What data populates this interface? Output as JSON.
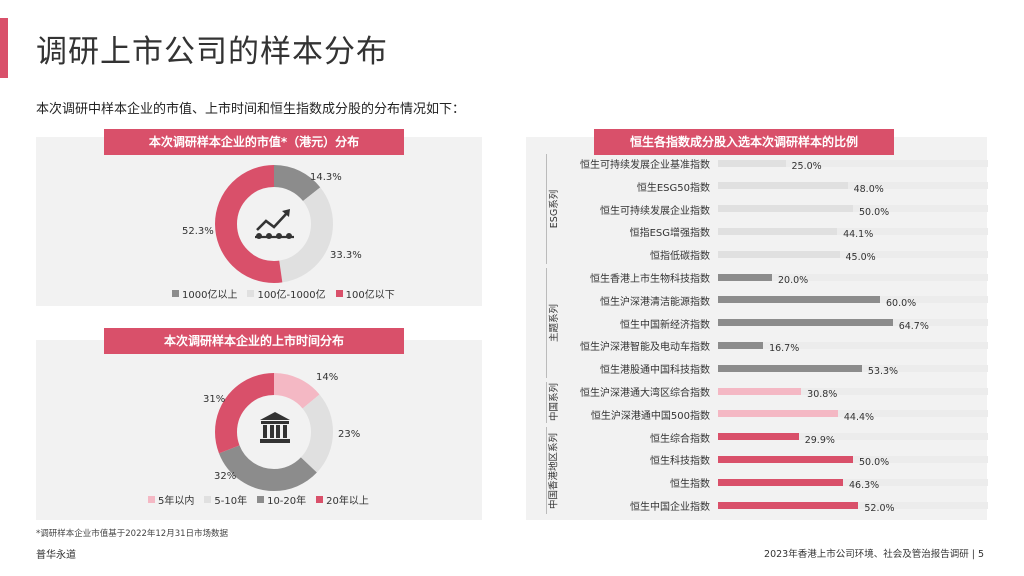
{
  "title": "调研上市公司的样本分布",
  "subtitle": "本次调研中样本企业的市值、上市时间和恒生指数成分股的分布情况如下：",
  "colors": {
    "accent": "#d9506a",
    "dark_gray": "#8c8c8c",
    "light_gray": "#e0e0e0",
    "light_pink": "#f4b8c4"
  },
  "panel1": {
    "heading": "本次调研样本企业的市值*（港元）分布",
    "icon": "chart-trend-icon",
    "legend": [
      "1000亿以上",
      "100亿-1000亿",
      "100亿以下"
    ]
  },
  "panel2": {
    "heading": "本次调研样本企业的上市时间分布",
    "icon": "bank-building-icon",
    "legend": [
      "5年以内",
      "5-10年",
      "10-20年",
      "20年以上"
    ]
  },
  "panel3": {
    "heading": "恒生各指数成分股入选本次调研样本的比例"
  },
  "chart_data": [
    {
      "type": "pie",
      "title": "本次调研样本企业的市值*（港元）分布",
      "categories": [
        "1000亿以上",
        "100亿-1000亿",
        "100亿以下"
      ],
      "values": [
        14.3,
        33.3,
        52.3
      ],
      "labels": [
        "14.3%",
        "33.3%",
        "52.3%"
      ],
      "colors": [
        "#8c8c8c",
        "#e0e0e0",
        "#d9506a"
      ]
    },
    {
      "type": "pie",
      "title": "本次调研样本企业的上市时间分布",
      "categories": [
        "5年以内",
        "5-10年",
        "10-20年",
        "20年以上"
      ],
      "values": [
        14,
        23,
        32,
        31
      ],
      "labels": [
        "14%",
        "23%",
        "32%",
        "31%"
      ],
      "colors": [
        "#f4b8c4",
        "#e0e0e0",
        "#8c8c8c",
        "#d9506a"
      ]
    },
    {
      "type": "bar",
      "orientation": "horizontal",
      "title": "恒生各指数成分股入选本次调研样本的比例",
      "xlim": [
        0,
        100
      ],
      "groups": [
        {
          "name": "ESG系列",
          "color": "#e0e0e0",
          "rows": [
            {
              "label": "恒生可持续发展企业基准指数",
              "value": 25.0,
              "text": "25.0%"
            },
            {
              "label": "恒生ESG50指数",
              "value": 48.0,
              "text": "48.0%"
            },
            {
              "label": "恒生可持续发展企业指数",
              "value": 50.0,
              "text": "50.0%"
            },
            {
              "label": "恒指ESG增强指数",
              "value": 44.1,
              "text": "44.1%"
            },
            {
              "label": "恒指低碳指数",
              "value": 45.0,
              "text": "45.0%"
            }
          ]
        },
        {
          "name": "主题系列",
          "color": "#8c8c8c",
          "rows": [
            {
              "label": "恒生香港上市生物科技指数",
              "value": 20.0,
              "text": "20.0%"
            },
            {
              "label": "恒生沪深港清洁能源指数",
              "value": 60.0,
              "text": "60.0%"
            },
            {
              "label": "恒生中国新经济指数",
              "value": 64.7,
              "text": "64.7%"
            },
            {
              "label": "恒生沪深港智能及电动车指数",
              "value": 16.7,
              "text": "16.7%"
            },
            {
              "label": "恒生港股通中国科技指数",
              "value": 53.3,
              "text": "53.3%"
            }
          ]
        },
        {
          "name": "中国系列",
          "color": "#f4b8c4",
          "rows": [
            {
              "label": "恒生沪深港通大湾区综合指数",
              "value": 30.8,
              "text": "30.8%"
            },
            {
              "label": "恒生沪深港通中国500指数",
              "value": 44.4,
              "text": "44.4%"
            }
          ]
        },
        {
          "name": "中国香港地区系列",
          "color": "#d9506a",
          "rows": [
            {
              "label": "恒生综合指数",
              "value": 29.9,
              "text": "29.9%"
            },
            {
              "label": "恒生科技指数",
              "value": 50.0,
              "text": "50.0%"
            },
            {
              "label": "恒生指数",
              "value": 46.3,
              "text": "46.3%"
            },
            {
              "label": "恒生中国企业指数",
              "value": 52.0,
              "text": "52.0%"
            }
          ]
        }
      ]
    }
  ],
  "footnote": "*调研样本企业市值基于2022年12月31日市场数据",
  "brand": "普华永道",
  "footer": "2023年香港上市公司环境、社会及管治报告调研 | 5"
}
